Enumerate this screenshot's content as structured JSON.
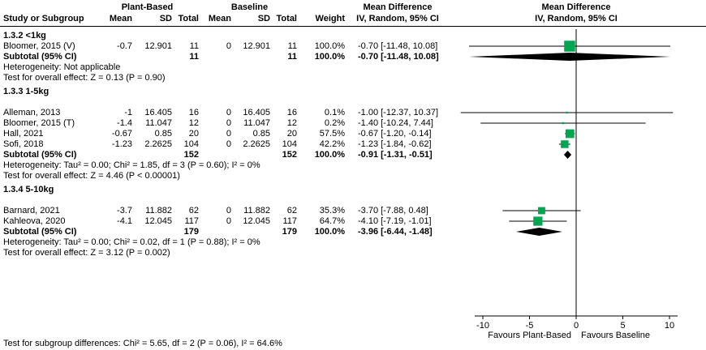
{
  "header": {
    "group1": "Plant-Based",
    "group2": "Baseline",
    "md": "Mean Difference",
    "study": "Study or Subgroup",
    "mean": "Mean",
    "sd": "SD",
    "total": "Total",
    "weight": "Weight",
    "ci_method": "IV, Random, 95% CI"
  },
  "axis": {
    "ticks": [
      -10,
      -5,
      0,
      5,
      10
    ],
    "min": -10,
    "max": 10,
    "favours_left": "Favours Plant-Based",
    "favours_right": "Favours Baseline"
  },
  "footer": {
    "subgroup_test": "Test for subgroup differences: Chi² = 5.65, df = 2 (P = 0.06), I² = 64.6%"
  },
  "colors": {
    "square_green": "#00a651",
    "diamond_black": "#000000",
    "line_black": "#000000"
  },
  "chart_data": {
    "type": "forest",
    "effect_measure": "Mean Difference",
    "model": "IV, Random, 95% CI",
    "xlim": [
      -10,
      10
    ],
    "groups": [
      {
        "label": "1.3.2 <1kg",
        "studies": [
          {
            "label": "Bloomer, 2015 (V)",
            "mean1": "-0.7",
            "sd1": "12.901",
            "total1": "11",
            "mean2": "0",
            "sd2": "12.901",
            "total2": "11",
            "weight": "100.0%",
            "weight_pct": 100.0,
            "ci_text": "-0.70 [-11.48, 10.08]",
            "est": -0.7,
            "lo": -11.48,
            "hi": 10.08
          }
        ],
        "subtotal": {
          "label": "Subtotal (95% CI)",
          "total1": "11",
          "total2": "11",
          "weight": "100.0%",
          "ci_text": "-0.70 [-11.48, 10.08]",
          "est": -0.7,
          "lo": -11.48,
          "hi": 10.08
        },
        "heterogeneity": "Heterogeneity: Not applicable",
        "overall_effect": "Test for overall effect: Z = 0.13 (P = 0.90)"
      },
      {
        "label": "1.3.3 1-5kg",
        "studies": [
          {
            "label": "Alleman, 2013",
            "mean1": "-1",
            "sd1": "16.405",
            "total1": "16",
            "mean2": "0",
            "sd2": "16.405",
            "total2": "16",
            "weight": "0.1%",
            "weight_pct": 0.1,
            "ci_text": "-1.00 [-12.37, 10.37]",
            "est": -1.0,
            "lo": -12.37,
            "hi": 10.37
          },
          {
            "label": "Bloomer, 2015 (T)",
            "mean1": "-1.4",
            "sd1": "11.047",
            "total1": "12",
            "mean2": "0",
            "sd2": "11.047",
            "total2": "12",
            "weight": "0.2%",
            "weight_pct": 0.2,
            "ci_text": "-1.40 [-10.24, 7.44]",
            "est": -1.4,
            "lo": -10.24,
            "hi": 7.44
          },
          {
            "label": "Hall, 2021",
            "mean1": "-0.67",
            "sd1": "0.85",
            "total1": "20",
            "mean2": "0",
            "sd2": "0.85",
            "total2": "20",
            "weight": "57.5%",
            "weight_pct": 57.5,
            "ci_text": "-0.67 [-1.20, -0.14]",
            "est": -0.67,
            "lo": -1.2,
            "hi": -0.14
          },
          {
            "label": "Sofi, 2018",
            "mean1": "-1.23",
            "sd1": "2.2625",
            "total1": "104",
            "mean2": "0",
            "sd2": "2.2625",
            "total2": "104",
            "weight": "42.2%",
            "weight_pct": 42.2,
            "ci_text": "-1.23 [-1.84, -0.62]",
            "est": -1.23,
            "lo": -1.84,
            "hi": -0.62
          }
        ],
        "subtotal": {
          "label": "Subtotal (95% CI)",
          "total1": "152",
          "total2": "152",
          "weight": "100.0%",
          "ci_text": "-0.91 [-1.31, -0.51]",
          "est": -0.91,
          "lo": -1.31,
          "hi": -0.51
        },
        "heterogeneity": "Heterogeneity: Tau² = 0.00; Chi² = 1.85, df = 3 (P = 0.60); I² = 0%",
        "overall_effect": "Test for overall effect: Z = 4.46 (P < 0.00001)"
      },
      {
        "label": "1.3.4 5-10kg",
        "studies": [
          {
            "label": "Barnard, 2021",
            "mean1": "-3.7",
            "sd1": "11.882",
            "total1": "62",
            "mean2": "0",
            "sd2": "11.882",
            "total2": "62",
            "weight": "35.3%",
            "weight_pct": 35.3,
            "ci_text": "-3.70 [-7.88, 0.48]",
            "est": -3.7,
            "lo": -7.88,
            "hi": 0.48
          },
          {
            "label": "Kahleova, 2020",
            "mean1": "-4.1",
            "sd1": "12.045",
            "total1": "117",
            "mean2": "0",
            "sd2": "12.045",
            "total2": "117",
            "weight": "64.7%",
            "weight_pct": 64.7,
            "ci_text": "-4.10 [-7.19, -1.01]",
            "est": -4.1,
            "lo": -7.19,
            "hi": -1.01
          }
        ],
        "subtotal": {
          "label": "Subtotal (95% CI)",
          "total1": "179",
          "total2": "179",
          "weight": "100.0%",
          "ci_text": "-3.96 [-6.44, -1.48]",
          "est": -3.96,
          "lo": -6.44,
          "hi": -1.48
        },
        "heterogeneity": "Heterogeneity: Tau² = 0.00; Chi² = 0.02, df = 1 (P = 0.88); I² = 0%",
        "overall_effect": "Test for overall effect: Z = 3.12 (P = 0.002)"
      }
    ]
  }
}
